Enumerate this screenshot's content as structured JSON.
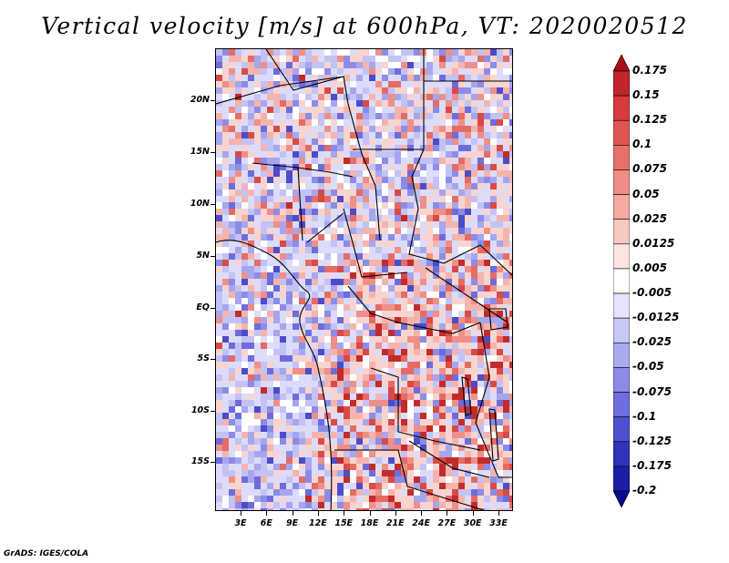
{
  "title": "Vertical velocity [m/s] at 600hPa, VT: 2020020512",
  "footer": "GrADS: IGES/COLA",
  "map": {
    "region": "Central Africa",
    "lat_labels": [
      "20N",
      "15N",
      "10N",
      "5N",
      "EQ",
      "5S",
      "10S",
      "15S"
    ],
    "lon_labels": [
      "3E",
      "6E",
      "9E",
      "12E",
      "15E",
      "18E",
      "21E",
      "24E",
      "27E",
      "30E",
      "33E"
    ],
    "lat_range": [
      -20,
      25
    ],
    "lon_range": [
      0,
      35
    ]
  },
  "colorbar": {
    "labels": [
      "0.175",
      "0.15",
      "0.125",
      "0.1",
      "0.075",
      "0.05",
      "0.025",
      "0.0125",
      "0.005",
      "-0.005",
      "-0.0125",
      "-0.025",
      "-0.05",
      "-0.075",
      "-0.1",
      "-0.125",
      "-0.175",
      "-0.2"
    ],
    "colors": [
      "#a50f15",
      "#c0262b",
      "#d73b3b",
      "#e05552",
      "#e8706a",
      "#ef8c85",
      "#f4aaa3",
      "#f8c8c3",
      "#fce4e1",
      "#ffffff",
      "#e4e4fb",
      "#c8c8f6",
      "#aaaaf0",
      "#8c8ce8",
      "#6e6ede",
      "#5050d0",
      "#3232bc",
      "#1c1ca6",
      "#0a0a8c"
    ]
  }
}
